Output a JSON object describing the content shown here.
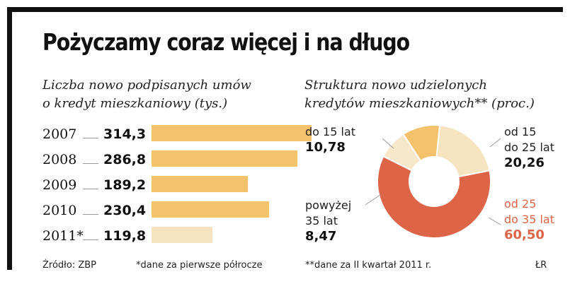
{
  "title": "Pożyczamy coraz więcej i na długo",
  "left_chart": {
    "subtitle_line1": "Liczba nowo podpisanych umów",
    "subtitle_line2": "o kredyt mieszkaniowy (tys.)"
  },
  "right_chart": {
    "subtitle_line1": "Struktura nowo udzielonych",
    "subtitle_line2": "kredytów mieszkaniowych** (proc.)"
  },
  "footer": {
    "source": "Źródło: ZBP",
    "note1": "*dane za pierwsze półrocze",
    "note2": "**dane za II kwartał 2011 r.",
    "author": "ŁR"
  },
  "colors": {
    "bar_main": "#f4c16c",
    "bar_partial": "#f5e4bf",
    "seg_15": "#f4c16c",
    "seg_15_25": "#f5e4bf",
    "seg_25_35": "#dd6447",
    "seg_35": "#f7e8cc"
  },
  "chart_data": [
    {
      "type": "bar",
      "orientation": "horizontal",
      "categories": [
        "2007",
        "2008",
        "2009",
        "2010",
        "2011*"
      ],
      "values": [
        314.3,
        286.8,
        189.2,
        230.4,
        119.8
      ],
      "value_labels": [
        "314,3",
        "286,8",
        "189,2",
        "230,4",
        "119,8"
      ],
      "title": "Liczba nowo podpisanych umów o kredyt mieszkaniowy (tys.)"
    },
    {
      "type": "pie",
      "donut": true,
      "slices": [
        {
          "label_a": "do 15 lat",
          "label_b": "",
          "label_c": "",
          "value": 10.78,
          "value_label": "10,78"
        },
        {
          "label_a": "od 15",
          "label_b": "do 25 lat",
          "label_c": "",
          "value": 20.26,
          "value_label": "20,26"
        },
        {
          "label_a": "od 25",
          "label_b": "do 35 lat",
          "label_c": "",
          "value": 60.5,
          "value_label": "60,50"
        },
        {
          "label_a": "powyżej",
          "label_b": "35 lat",
          "label_c": "",
          "value": 8.47,
          "value_label": "8,47"
        }
      ],
      "title": "Struktura nowo udzielonych kredytów mieszkaniowych** (proc.)"
    }
  ]
}
